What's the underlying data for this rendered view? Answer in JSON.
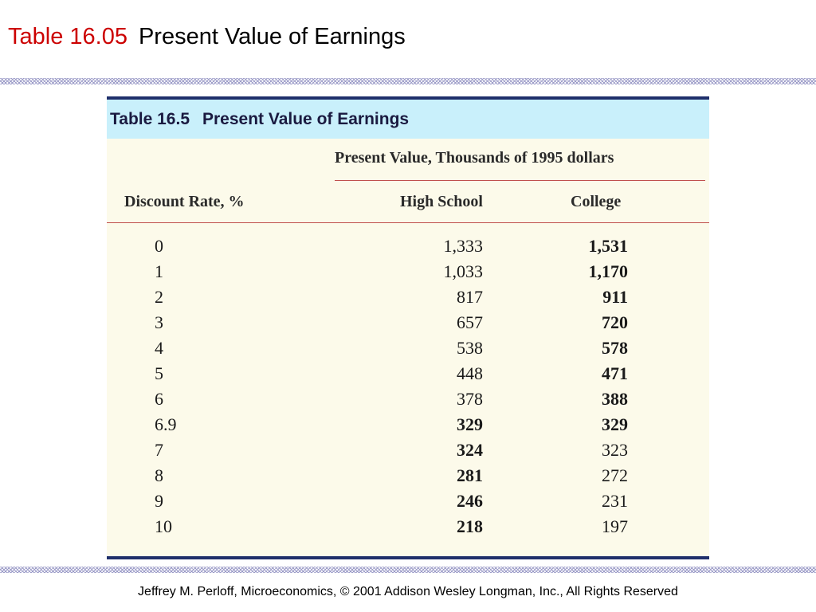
{
  "slide": {
    "title_prefix": "Table 16.05",
    "title_text": "Present Value of Earnings",
    "footer": "Jeffrey M. Perloff, Microeconomics,  © 2001 Addison Wesley Longman, Inc.,  All Rights Reserved",
    "title_prefix_color": "#cc0000"
  },
  "table": {
    "caption_number": "Table 16.5",
    "caption_title": "Present Value of Earnings",
    "super_header": "Present Value, Thousands of 1995 dollars",
    "columns": {
      "rate": "Discount Rate, %",
      "high_school": "High School",
      "college": "College"
    },
    "rows": [
      {
        "rate": "0",
        "high_school": "1,333",
        "college": "1,531",
        "bold": "college"
      },
      {
        "rate": "1",
        "high_school": "1,033",
        "college": "1,170",
        "bold": "college"
      },
      {
        "rate": "2",
        "high_school": "817",
        "college": "911",
        "bold": "college"
      },
      {
        "rate": "3",
        "high_school": "657",
        "college": "720",
        "bold": "college"
      },
      {
        "rate": "4",
        "high_school": "538",
        "college": "578",
        "bold": "college"
      },
      {
        "rate": "5",
        "high_school": "448",
        "college": "471",
        "bold": "college"
      },
      {
        "rate": "6",
        "high_school": "378",
        "college": "388",
        "bold": "college"
      },
      {
        "rate": "6.9",
        "high_school": "329",
        "college": "329",
        "bold": "both"
      },
      {
        "rate": "7",
        "high_school": "324",
        "college": "323",
        "bold": "high_school"
      },
      {
        "rate": "8",
        "high_school": "281",
        "college": "272",
        "bold": "high_school"
      },
      {
        "rate": "9",
        "high_school": "246",
        "college": "231",
        "bold": "high_school"
      },
      {
        "rate": "10",
        "high_school": "218",
        "college": "197",
        "bold": "high_school"
      }
    ],
    "colors": {
      "caption_background": "#c9f0fb",
      "body_background": "#fcfaea",
      "border": "#1f2f6b",
      "rule": "#c0504d"
    }
  }
}
